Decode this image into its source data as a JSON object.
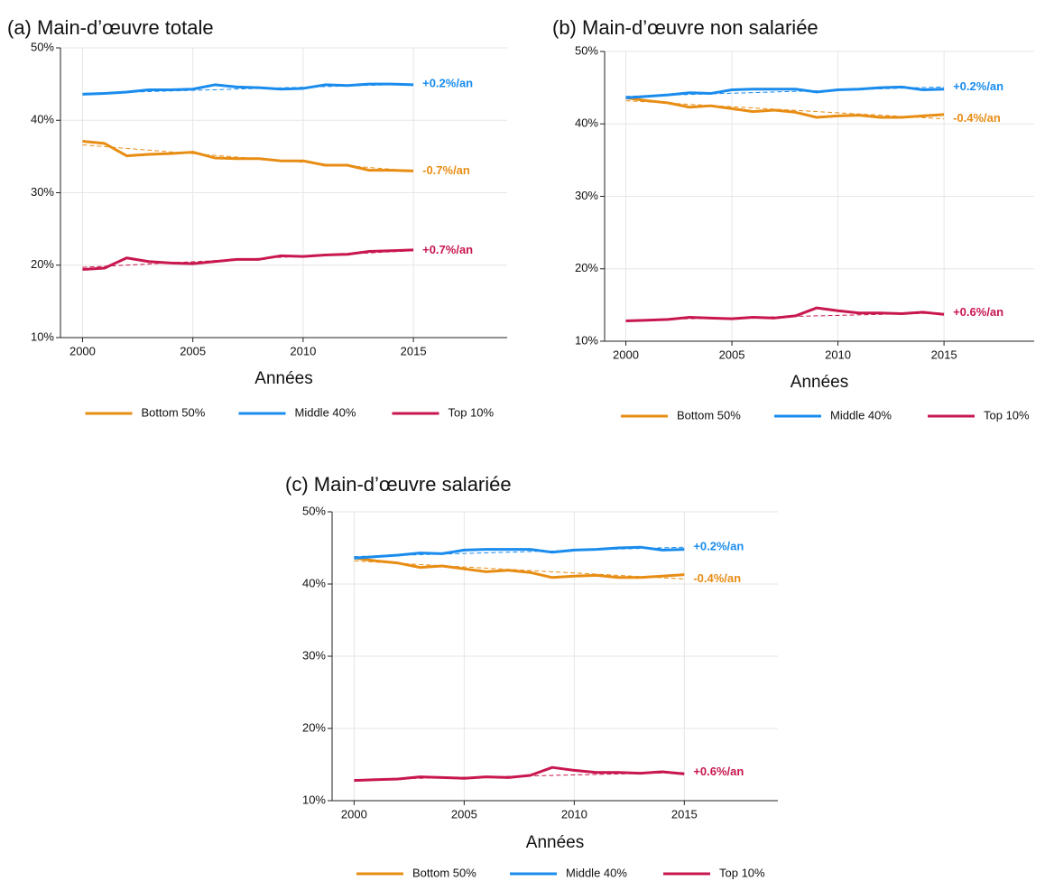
{
  "chart_data": [
    {
      "type": "line",
      "title": "(a) Main-d’œuvre totale",
      "xlabel": "Années",
      "x": [
        2000,
        2001,
        2002,
        2003,
        2004,
        2005,
        2006,
        2007,
        2008,
        2009,
        2010,
        2011,
        2012,
        2013,
        2014,
        2015
      ],
      "xlim": [
        1999,
        2019.25
      ],
      "xticks": [
        2000,
        2005,
        2010,
        2015
      ],
      "ylim": [
        10,
        50
      ],
      "yticks": [
        {
          "value": 10,
          "label": "10%"
        },
        {
          "value": 20,
          "label": "20%"
        },
        {
          "value": 30,
          "label": "30%"
        },
        {
          "value": 40,
          "label": "40%"
        },
        {
          "value": 50,
          "label": "50%"
        }
      ],
      "grid": true,
      "series": [
        {
          "name": "Bottom 50%",
          "color": "#e88d14",
          "label": "-0.7%/an",
          "trend": [
            36.6,
            33.0
          ],
          "values": [
            37.1,
            36.8,
            35.1,
            35.3,
            35.4,
            35.6,
            34.8,
            34.7,
            34.7,
            34.4,
            34.4,
            33.8,
            33.8,
            33.1,
            33.1,
            33.0
          ]
        },
        {
          "name": "Middle 40%",
          "color": "#1a8ced",
          "label": "+0.2%/an",
          "trend": [
            43.7,
            45.0
          ],
          "values": [
            43.6,
            43.7,
            43.9,
            44.2,
            44.2,
            44.3,
            44.9,
            44.6,
            44.5,
            44.3,
            44.4,
            44.9,
            44.8,
            45.0,
            45.0,
            44.9
          ]
        },
        {
          "name": "Top 10%",
          "color": "#c8174f",
          "label": "+0.7%/an",
          "trend": [
            19.7,
            22.0
          ],
          "values": [
            19.4,
            19.6,
            21.0,
            20.5,
            20.3,
            20.2,
            20.5,
            20.8,
            20.8,
            21.3,
            21.2,
            21.4,
            21.5,
            21.9,
            22.0,
            22.1
          ]
        }
      ]
    },
    {
      "type": "line",
      "title": "(b) Main-d’œuvre non salariée",
      "xlabel": "Années",
      "x": [
        2000,
        2001,
        2002,
        2003,
        2004,
        2005,
        2006,
        2007,
        2008,
        2009,
        2010,
        2011,
        2012,
        2013,
        2014,
        2015
      ],
      "xlim": [
        1999,
        2019.25
      ],
      "xticks": [
        2000,
        2005,
        2010,
        2015
      ],
      "ylim": [
        10,
        50
      ],
      "yticks": [
        {
          "value": 10,
          "label": "10%"
        },
        {
          "value": 20,
          "label": "20%"
        },
        {
          "value": 30,
          "label": "30%"
        },
        {
          "value": 40,
          "label": "40%"
        },
        {
          "value": 50,
          "label": "50%"
        }
      ],
      "grid": true,
      "series": [
        {
          "name": "Bottom 50%",
          "color": "#e88d14",
          "label": "-0.4%/an",
          "trend": [
            43.2,
            40.7
          ],
          "values": [
            43.6,
            43.2,
            42.9,
            42.3,
            42.5,
            42.1,
            41.7,
            41.9,
            41.6,
            40.9,
            41.1,
            41.2,
            40.9,
            40.9,
            41.1,
            41.3
          ]
        },
        {
          "name": "Middle 40%",
          "color": "#1a8ced",
          "label": "+0.2%/an",
          "trend": [
            43.8,
            45.1
          ],
          "values": [
            43.6,
            43.8,
            44.0,
            44.3,
            44.2,
            44.7,
            44.8,
            44.8,
            44.8,
            44.4,
            44.7,
            44.8,
            45.0,
            45.1,
            44.7,
            44.8
          ]
        },
        {
          "name": "Top 10%",
          "color": "#c8174f",
          "label": "+0.6%/an",
          "trend": [
            12.9,
            13.9
          ],
          "values": [
            12.8,
            12.9,
            13.0,
            13.3,
            13.2,
            13.1,
            13.3,
            13.2,
            13.5,
            14.6,
            14.2,
            13.9,
            13.9,
            13.8,
            14.0,
            13.7
          ]
        }
      ]
    },
    {
      "type": "line",
      "title": "(c) Main-d’œuvre salariée",
      "xlabel": "Années",
      "x": [
        2000,
        2001,
        2002,
        2003,
        2004,
        2005,
        2006,
        2007,
        2008,
        2009,
        2010,
        2011,
        2012,
        2013,
        2014,
        2015
      ],
      "xlim": [
        1999,
        2019.25
      ],
      "xticks": [
        2000,
        2005,
        2010,
        2015
      ],
      "ylim": [
        10,
        50
      ],
      "yticks": [
        {
          "value": 10,
          "label": "10%"
        },
        {
          "value": 20,
          "label": "20%"
        },
        {
          "value": 30,
          "label": "30%"
        },
        {
          "value": 40,
          "label": "40%"
        },
        {
          "value": 50,
          "label": "50%"
        }
      ],
      "grid": true,
      "series": [
        {
          "name": "Bottom 50%",
          "color": "#e88d14",
          "label": "-0.4%/an",
          "trend": [
            43.2,
            40.7
          ],
          "values": [
            43.6,
            43.2,
            42.9,
            42.3,
            42.5,
            42.1,
            41.7,
            41.9,
            41.6,
            40.9,
            41.1,
            41.2,
            40.9,
            40.9,
            41.1,
            41.3
          ]
        },
        {
          "name": "Middle 40%",
          "color": "#1a8ced",
          "label": "+0.2%/an",
          "trend": [
            43.8,
            45.1
          ],
          "values": [
            43.6,
            43.8,
            44.0,
            44.3,
            44.2,
            44.7,
            44.8,
            44.8,
            44.8,
            44.4,
            44.7,
            44.8,
            45.0,
            45.1,
            44.7,
            44.8
          ]
        },
        {
          "name": "Top 10%",
          "color": "#c8174f",
          "label": "+0.6%/an",
          "trend": [
            12.9,
            13.9
          ],
          "values": [
            12.8,
            12.9,
            13.0,
            13.3,
            13.2,
            13.1,
            13.3,
            13.2,
            13.5,
            14.6,
            14.2,
            13.9,
            13.9,
            13.8,
            14.0,
            13.7
          ]
        }
      ]
    }
  ]
}
